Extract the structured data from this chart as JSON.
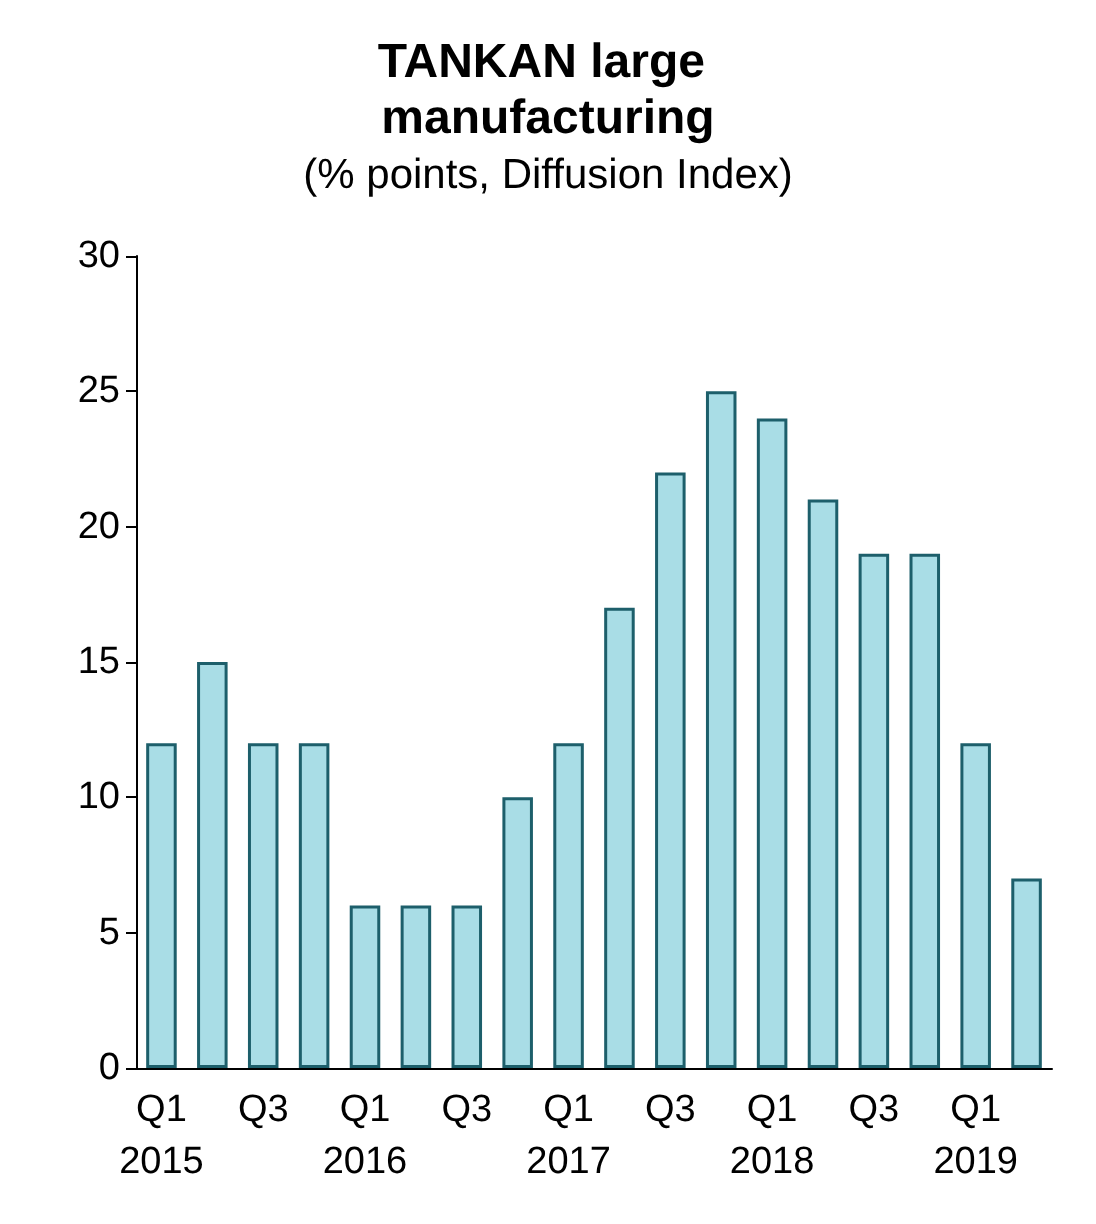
{
  "chart_data": {
    "type": "bar",
    "title": "TANKAN large manufacturing",
    "subtitle": "(% points, Diffusion Index)",
    "categories": [
      "Q1\n2015",
      null,
      "Q3",
      null,
      "Q1\n2016",
      null,
      "Q3",
      null,
      "Q1\n2017",
      null,
      "Q3",
      null,
      "Q1\n2018",
      null,
      "Q3",
      null,
      "Q1\n2019",
      null
    ],
    "series": [
      {
        "color": "#a9dde6",
        "values": [
          12,
          15,
          12,
          12,
          6,
          6,
          6,
          10,
          12,
          17,
          22,
          25,
          24,
          21,
          19,
          19,
          12,
          7
        ]
      }
    ],
    "ylim": [
      0,
      30
    ],
    "yticks": [
      0,
      5,
      10,
      15,
      20,
      25,
      30
    ]
  }
}
